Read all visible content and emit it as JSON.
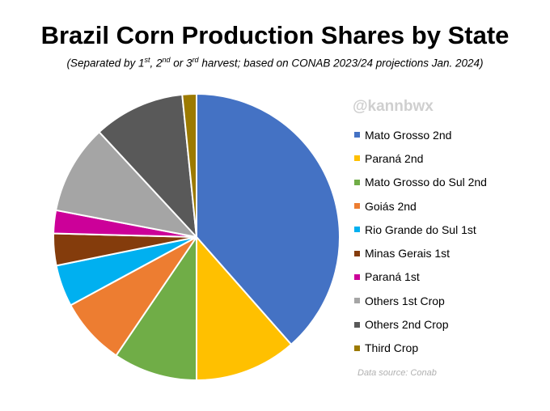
{
  "header": {
    "title": "Brazil Corn Production Shares by State",
    "subtitle_parts": [
      "(Separated by 1",
      "st",
      ", 2",
      "nd",
      " or 3",
      "rd",
      " harvest; based on CONAB 2023/24 projections Jan. 2024)"
    ]
  },
  "watermark": "@kannbwx",
  "source": "Data source: Conab",
  "chart_data": {
    "type": "pie",
    "title": "Brazil Corn Production Shares by State",
    "subtitle": "(Separated by 1st, 2nd or 3rd harvest; based on CONAB 2023/24 projections Jan. 2024)",
    "unit": "share of total production (%)",
    "legend_position": "right",
    "start": "12 o'clock, clockwise",
    "slices": [
      {
        "label": "Mato Grosso 2nd",
        "value": 38.5,
        "color": "#4472C4"
      },
      {
        "label": "Paraná 2nd",
        "value": 11.5,
        "color": "#FFC000"
      },
      {
        "label": "Mato Grosso do Sul 2nd",
        "value": 9.5,
        "color": "#70AD47"
      },
      {
        "label": "Goiás 2nd",
        "value": 7.6,
        "color": "#ED7D31"
      },
      {
        "label": "Rio Grande do Sul 1st",
        "value": 4.7,
        "color": "#00B0F0"
      },
      {
        "label": "Minas Gerais 1st",
        "value": 3.6,
        "color": "#843C0C"
      },
      {
        "label": "Paraná 1st",
        "value": 2.6,
        "color": "#CC0099"
      },
      {
        "label": "Others 1st Crop",
        "value": 10.1,
        "color": "#A5A5A5"
      },
      {
        "label": "Others 2nd Crop",
        "value": 10.3,
        "color": "#595959"
      },
      {
        "label": "Third Crop",
        "value": 1.6,
        "color": "#9C7A00"
      }
    ]
  }
}
